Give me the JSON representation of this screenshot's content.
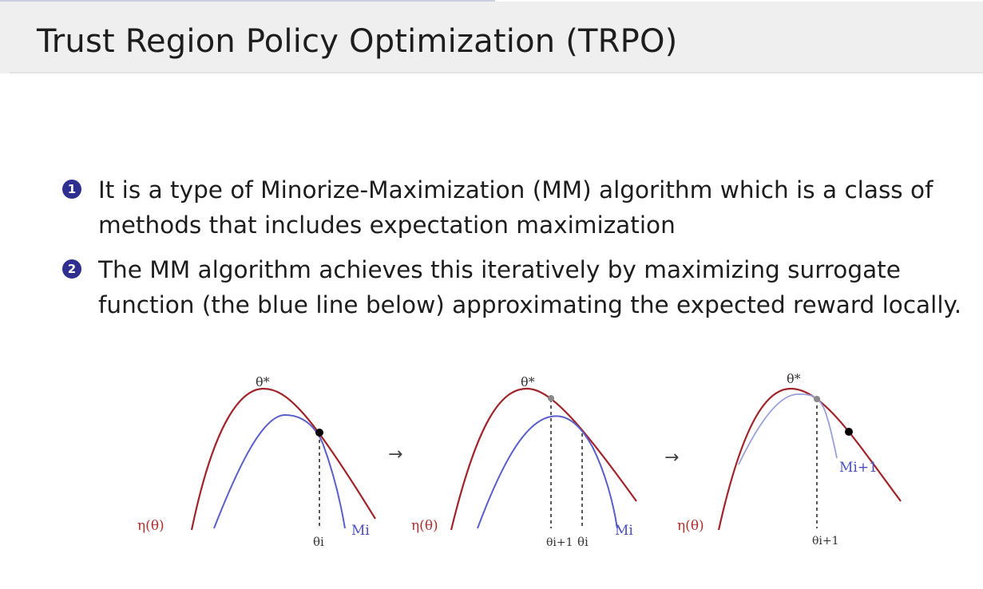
{
  "title": "Trust Region Policy Optimization (TRPO)",
  "bullets": [
    {
      "number": "1",
      "text": "It is a type of Minorize-Maximization (MM) algorithm which is a class of methods that includes expectation maximization"
    },
    {
      "number": "2",
      "text": "The MM algorithm achieves this iteratively by maximizing surrogate function (the blue line below) approximating the expected reward locally."
    }
  ],
  "figure": {
    "panels": [
      {
        "eta_label": "η(θ)",
        "theta_star": "θ*",
        "theta_marks": [
          "θi"
        ],
        "surrogate_label": "Mi"
      },
      {
        "eta_label": "η(θ)",
        "theta_star": "θ*",
        "theta_marks": [
          "θi+1",
          "θi"
        ],
        "surrogate_label": "Mi"
      },
      {
        "eta_label": "η(θ)",
        "theta_star": "θ*",
        "theta_marks": [
          "θi+1"
        ],
        "surrogate_label": "Mi+1"
      }
    ],
    "arrow_symbol": "→",
    "colors": {
      "objective": "#a0252b",
      "surrogate": "#5a5fc9",
      "surrogate_faded": "#9aa0dc",
      "marker": "#000000"
    }
  }
}
